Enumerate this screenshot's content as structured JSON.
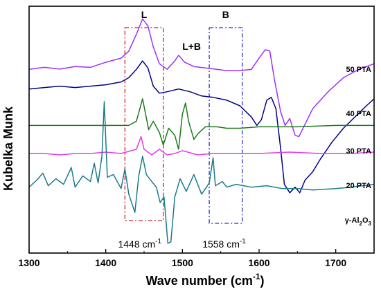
{
  "chart_data": {
    "type": "line",
    "title": "",
    "xlabel": "Wave number (cm",
    "xlabel_sup": "-1",
    "xlabel_tail": ")",
    "ylabel": "Kubelka Munk",
    "xlim": [
      1300,
      1750
    ],
    "x_ticks": [
      1300,
      1400,
      1500,
      1600,
      1700
    ],
    "x_tick_labels": [
      "1300",
      "1400",
      "1500",
      "1600",
      "1700"
    ],
    "y_ticks_shown": false,
    "grid": false,
    "legend": "inline labels at right",
    "series": [
      {
        "name": "50 PTA",
        "color": "#9b30ff",
        "points": [
          [
            1300,
            8.05
          ],
          [
            1320,
            8.12
          ],
          [
            1340,
            8.06
          ],
          [
            1360,
            8.15
          ],
          [
            1380,
            8.12
          ],
          [
            1400,
            8.3
          ],
          [
            1420,
            8.45
          ],
          [
            1430,
            8.7
          ],
          [
            1440,
            9.3
          ],
          [
            1448,
            9.85
          ],
          [
            1455,
            9.6
          ],
          [
            1462,
            8.85
          ],
          [
            1470,
            8.25
          ],
          [
            1480,
            8.05
          ],
          [
            1490,
            8.35
          ],
          [
            1495,
            8.55
          ],
          [
            1503,
            8.3
          ],
          [
            1515,
            8.15
          ],
          [
            1530,
            8.1
          ],
          [
            1545,
            8.05
          ],
          [
            1558,
            8.0
          ],
          [
            1575,
            8.0
          ],
          [
            1590,
            8.05
          ],
          [
            1600,
            8.45
          ],
          [
            1608,
            8.75
          ],
          [
            1614,
            8.7
          ],
          [
            1620,
            7.7
          ],
          [
            1628,
            6.55
          ],
          [
            1634,
            6.05
          ],
          [
            1640,
            6.3
          ],
          [
            1647,
            5.7
          ],
          [
            1652,
            5.65
          ],
          [
            1660,
            6.1
          ],
          [
            1670,
            6.65
          ],
          [
            1690,
            7.25
          ],
          [
            1710,
            7.75
          ],
          [
            1730,
            8.05
          ],
          [
            1750,
            8.25
          ]
        ]
      },
      {
        "name": "40 PTA",
        "color": "#00008b",
        "points": [
          [
            1300,
            7.35
          ],
          [
            1320,
            7.4
          ],
          [
            1340,
            7.45
          ],
          [
            1360,
            7.4
          ],
          [
            1380,
            7.45
          ],
          [
            1400,
            7.5
          ],
          [
            1420,
            7.6
          ],
          [
            1430,
            7.75
          ],
          [
            1440,
            8.05
          ],
          [
            1448,
            8.35
          ],
          [
            1455,
            8.1
          ],
          [
            1462,
            7.45
          ],
          [
            1470,
            7.2
          ],
          [
            1480,
            7.25
          ],
          [
            1495,
            7.35
          ],
          [
            1510,
            7.25
          ],
          [
            1525,
            7.1
          ],
          [
            1540,
            7.05
          ],
          [
            1558,
            6.95
          ],
          [
            1575,
            6.75
          ],
          [
            1590,
            6.35
          ],
          [
            1597,
            6.05
          ],
          [
            1603,
            6.25
          ],
          [
            1610,
            6.95
          ],
          [
            1616,
            7.05
          ],
          [
            1622,
            6.65
          ],
          [
            1628,
            5.25
          ],
          [
            1633,
            3.95
          ],
          [
            1640,
            3.65
          ],
          [
            1647,
            3.85
          ],
          [
            1653,
            3.65
          ],
          [
            1660,
            4.1
          ],
          [
            1670,
            4.4
          ],
          [
            1680,
            4.85
          ],
          [
            1695,
            5.45
          ],
          [
            1710,
            5.95
          ],
          [
            1725,
            6.35
          ],
          [
            1740,
            6.75
          ],
          [
            1750,
            7.0
          ]
        ]
      },
      {
        "name": "30 PTA",
        "color": "#1a7a1a",
        "points": [
          [
            1300,
            6.05
          ],
          [
            1320,
            6.05
          ],
          [
            1340,
            6.05
          ],
          [
            1360,
            6.05
          ],
          [
            1380,
            6.05
          ],
          [
            1400,
            6.05
          ],
          [
            1430,
            6.05
          ],
          [
            1440,
            6.2
          ],
          [
            1445,
            6.7
          ],
          [
            1448,
            7.0
          ],
          [
            1452,
            6.45
          ],
          [
            1456,
            5.9
          ],
          [
            1462,
            6.2
          ],
          [
            1470,
            5.8
          ],
          [
            1475,
            5.35
          ],
          [
            1482,
            5.95
          ],
          [
            1490,
            5.7
          ],
          [
            1495,
            5.2
          ],
          [
            1500,
            6.45
          ],
          [
            1504,
            6.85
          ],
          [
            1508,
            6.2
          ],
          [
            1515,
            5.55
          ],
          [
            1520,
            5.75
          ],
          [
            1530,
            6.0
          ],
          [
            1545,
            6.0
          ],
          [
            1558,
            5.95
          ],
          [
            1575,
            5.95
          ],
          [
            1600,
            6.0
          ],
          [
            1630,
            6.0
          ],
          [
            1650,
            6.0
          ],
          [
            1700,
            6.05
          ],
          [
            1750,
            6.05
          ]
        ]
      },
      {
        "name": "20 PTA",
        "color": "#e23be8",
        "points": [
          [
            1300,
            5.05
          ],
          [
            1320,
            5.05
          ],
          [
            1340,
            5.0
          ],
          [
            1360,
            5.05
          ],
          [
            1380,
            5.05
          ],
          [
            1400,
            5.1
          ],
          [
            1420,
            5.05
          ],
          [
            1440,
            5.2
          ],
          [
            1446,
            5.65
          ],
          [
            1450,
            5.2
          ],
          [
            1460,
            5.0
          ],
          [
            1470,
            5.2
          ],
          [
            1480,
            5.0
          ],
          [
            1490,
            5.05
          ],
          [
            1500,
            5.15
          ],
          [
            1520,
            5.0
          ],
          [
            1540,
            5.05
          ],
          [
            1558,
            5.05
          ],
          [
            1580,
            5.05
          ],
          [
            1600,
            5.05
          ],
          [
            1640,
            5.1
          ],
          [
            1680,
            5.05
          ],
          [
            1720,
            5.05
          ],
          [
            1750,
            5.1
          ]
        ]
      },
      {
        "name": "γ-Al2O3",
        "name_parts": [
          "γ-Al",
          "2",
          "O",
          "3"
        ],
        "color": "#1a7a8a",
        "points": [
          [
            1300,
            3.85
          ],
          [
            1310,
            4.1
          ],
          [
            1318,
            4.35
          ],
          [
            1325,
            3.9
          ],
          [
            1335,
            4.15
          ],
          [
            1345,
            3.95
          ],
          [
            1355,
            4.55
          ],
          [
            1360,
            3.85
          ],
          [
            1370,
            4.25
          ],
          [
            1380,
            4.05
          ],
          [
            1385,
            4.7
          ],
          [
            1390,
            4.0
          ],
          [
            1395,
            4.95
          ],
          [
            1398,
            6.9
          ],
          [
            1402,
            4.2
          ],
          [
            1410,
            4.3
          ],
          [
            1420,
            3.8
          ],
          [
            1425,
            4.5
          ],
          [
            1430,
            3.6
          ],
          [
            1438,
            2.95
          ],
          [
            1443,
            4.25
          ],
          [
            1448,
            4.95
          ],
          [
            1453,
            4.3
          ],
          [
            1460,
            4.05
          ],
          [
            1466,
            3.85
          ],
          [
            1471,
            3.3
          ],
          [
            1476,
            3.5
          ],
          [
            1481,
            1.85
          ],
          [
            1485,
            1.9
          ],
          [
            1490,
            3.5
          ],
          [
            1497,
            4.15
          ],
          [
            1505,
            3.7
          ],
          [
            1515,
            4.3
          ],
          [
            1525,
            3.6
          ],
          [
            1535,
            4.0
          ],
          [
            1540,
            4.9
          ],
          [
            1543,
            3.9
          ],
          [
            1552,
            4.05
          ],
          [
            1558,
            3.85
          ],
          [
            1570,
            3.95
          ],
          [
            1590,
            3.85
          ],
          [
            1610,
            3.9
          ],
          [
            1630,
            3.8
          ],
          [
            1650,
            3.8
          ],
          [
            1670,
            3.75
          ],
          [
            1700,
            3.8
          ],
          [
            1720,
            3.85
          ],
          [
            1750,
            3.95
          ]
        ]
      }
    ],
    "regions": [
      {
        "label": "L",
        "x0": 1425,
        "x1": 1475,
        "color": "#cc2222"
      },
      {
        "label": "B",
        "x0": 1535,
        "x1": 1578,
        "color": "#2233cc"
      }
    ],
    "annotations": [
      {
        "text": "L+B",
        "x": 1512
      },
      {
        "text": "1448 cm",
        "sup": "-1",
        "x": 1448
      },
      {
        "text": "1558 cm",
        "sup": "-1",
        "x": 1558
      }
    ]
  }
}
